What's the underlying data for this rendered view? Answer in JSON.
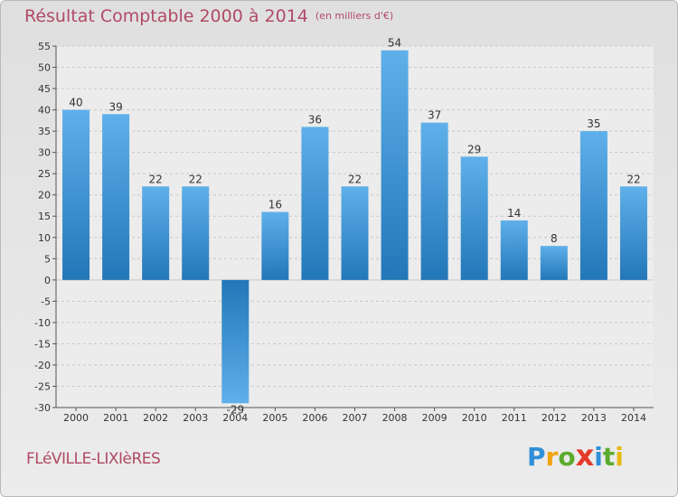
{
  "title": "Résultat Comptable 2000 à 2014",
  "unit_label": "(en milliers d'€)",
  "commune": "FLéVILLE-LIXIèRES",
  "logo": {
    "letters": [
      "P",
      "r",
      "o",
      "x",
      "i",
      "t",
      "i"
    ],
    "colors": [
      "#2f8fd8",
      "#f0a30a",
      "#5cab2e",
      "#e43a2a",
      "#2f8fd8",
      "#5cab2e",
      "#e8b712"
    ]
  },
  "colors": {
    "bar_light": "#5fb0ea",
    "bar_dark": "#2277b8",
    "grid": "#c8c8c8",
    "axis": "#555555",
    "text": "#333333"
  },
  "chart_data": {
    "type": "bar",
    "title": "Résultat Comptable 2000 à 2014",
    "xlabel": "",
    "ylabel": "",
    "categories": [
      "2000",
      "2001",
      "2002",
      "2003",
      "2004",
      "2005",
      "2006",
      "2007",
      "2008",
      "2009",
      "2010",
      "2011",
      "2012",
      "2013",
      "2014"
    ],
    "values": [
      40,
      39,
      22,
      22,
      -29,
      16,
      36,
      22,
      54,
      37,
      29,
      14,
      8,
      35,
      22
    ],
    "ylim": [
      -30,
      55
    ],
    "yticks": [
      -30,
      -25,
      -20,
      -15,
      -10,
      -5,
      0,
      5,
      10,
      15,
      20,
      25,
      30,
      35,
      40,
      45,
      50,
      55
    ],
    "grid": true
  }
}
